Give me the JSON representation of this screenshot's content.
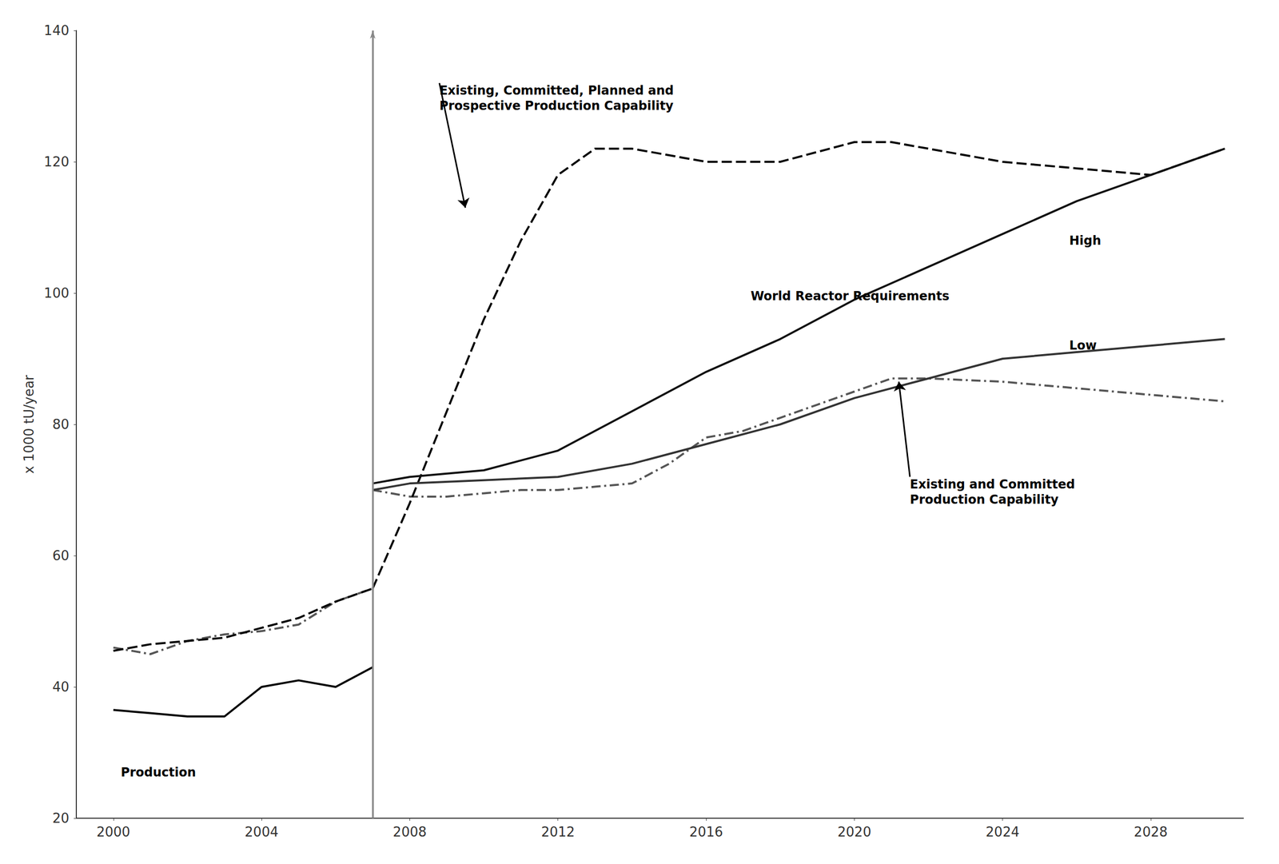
{
  "chart_data": {
    "type": "line",
    "ylabel": "x 1000 tU/year",
    "xlim": [
      1999,
      2030.5
    ],
    "ylim": [
      20,
      140
    ],
    "xticks": [
      2000,
      2004,
      2008,
      2012,
      2016,
      2020,
      2024,
      2028
    ],
    "yticks": [
      20,
      40,
      60,
      80,
      100,
      120,
      140
    ],
    "grid": false,
    "series": [
      {
        "x": [
          2000,
          2001,
          2002,
          2003,
          2004,
          2005,
          2006,
          2007
        ],
        "values": [
          46,
          45,
          47,
          48,
          48.5,
          49.5,
          53,
          55
        ],
        "color": "#555555",
        "line_style": "dashdot"
      },
      {
        "x": [
          2000,
          2001,
          2002,
          2003,
          2004,
          2005,
          2006,
          2007
        ],
        "values": [
          45.5,
          46.5,
          47,
          47.5,
          49,
          50.5,
          53,
          55
        ],
        "color": "#000000",
        "line_style": "dashed"
      },
      {
        "x": [
          2000,
          2001,
          2002,
          2003,
          2004,
          2005,
          2006,
          2007
        ],
        "values": [
          36.5,
          36.0,
          35.5,
          35.5,
          40.0,
          41.0,
          40.0,
          43.0
        ],
        "color": "#000000",
        "line_style": "solid"
      },
      {
        "x": [
          2007,
          2008,
          2009,
          2010,
          2011,
          2012,
          2013,
          2014,
          2015,
          2016,
          2017,
          2018,
          2019,
          2020,
          2021,
          2022,
          2024,
          2026,
          2028,
          2030
        ],
        "values": [
          70,
          69,
          69,
          69.5,
          70,
          70,
          70.5,
          71,
          74,
          78,
          79,
          81,
          83,
          85,
          87,
          87,
          86.5,
          85.5,
          84.5,
          83.5
        ],
        "color": "#555555",
        "line_style": "dashdot"
      },
      {
        "x": [
          2007,
          2008,
          2009,
          2010,
          2011,
          2012,
          2013,
          2014,
          2016,
          2018,
          2020,
          2021,
          2022,
          2024,
          2026,
          2028,
          2030
        ],
        "values": [
          55,
          68,
          82,
          96,
          108,
          118,
          122,
          122,
          120,
          120,
          123,
          123,
          122,
          120,
          119,
          118,
          122
        ],
        "color": "#000000",
        "line_style": "dashed"
      },
      {
        "x": [
          2007,
          2008,
          2010,
          2012,
          2014,
          2016,
          2018,
          2020,
          2022,
          2024,
          2026,
          2028,
          2030
        ],
        "values": [
          71,
          72,
          73,
          76,
          82,
          88,
          93,
          99,
          104,
          109,
          114,
          118,
          122
        ],
        "color": "#111111",
        "line_style": "solid"
      },
      {
        "x": [
          2007,
          2008,
          2010,
          2012,
          2014,
          2016,
          2018,
          2020,
          2022,
          2024,
          2026,
          2028,
          2030
        ],
        "values": [
          70,
          71,
          71.5,
          72,
          74,
          77,
          80,
          84,
          87,
          90,
          91,
          92,
          93
        ],
        "color": "#333333",
        "line_style": "solid"
      }
    ],
    "vertical_lines": [
      2007
    ],
    "annotations": [
      {
        "text": "Existing, Committed, Planned and\nProspective Production Capability",
        "x": 2008.8,
        "y": 132,
        "arrow_x": 2009.5,
        "arrow_y": 113
      },
      {
        "text": "Existing and Committed\nProduction Capability",
        "x": 2021.5,
        "y": 72,
        "arrow_x": 2021.2,
        "arrow_y": 86.5
      },
      {
        "text": "High",
        "x": 2025.8,
        "y": 108
      },
      {
        "text": "Low",
        "x": 2025.8,
        "y": 92
      },
      {
        "text": "World Reactor Requirements",
        "x": 2017.2,
        "y": 99.5
      },
      {
        "text": "Production",
        "x": 2000.2,
        "y": 27
      }
    ]
  }
}
